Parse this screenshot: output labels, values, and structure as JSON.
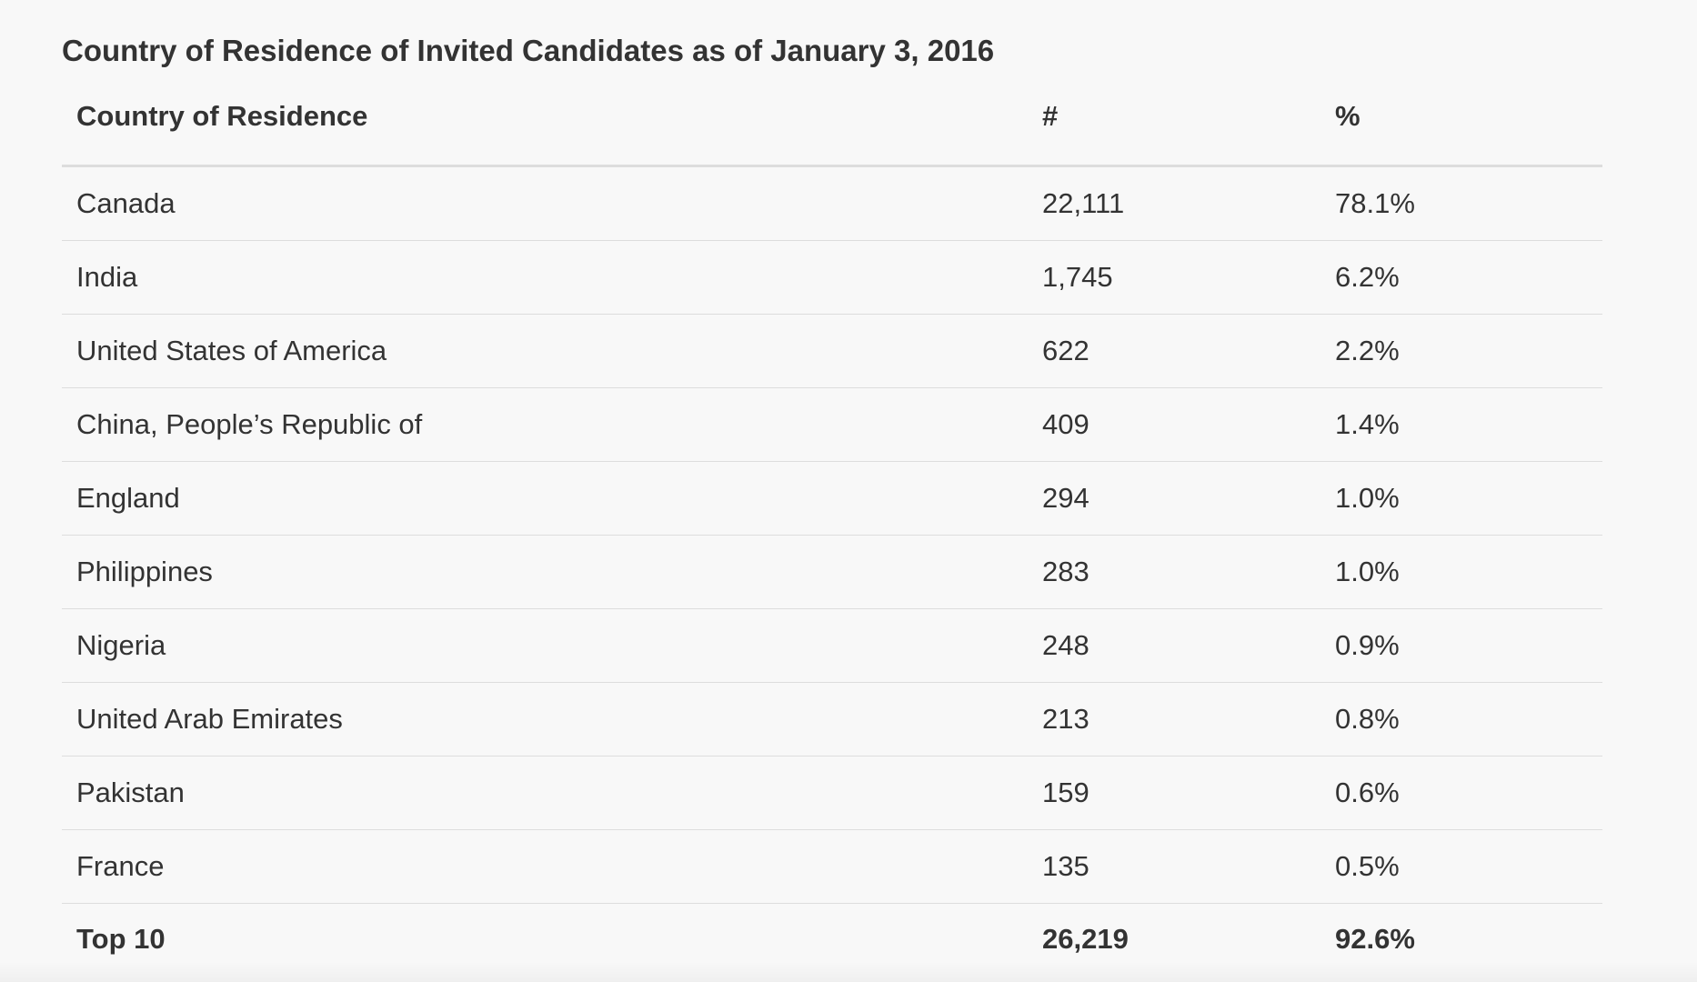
{
  "table": {
    "title": "Country of Residence of Invited Candidates as of January 3, 2016",
    "headers": [
      "Country of Residence",
      "#",
      "%"
    ],
    "rows": [
      [
        "Canada",
        "22,111",
        "78.1%"
      ],
      [
        "India",
        "1,745",
        "6.2%"
      ],
      [
        "United States of America",
        "622",
        "2.2%"
      ],
      [
        "China, People’s Republic of",
        "409",
        "1.4%"
      ],
      [
        "England",
        "294",
        "1.0%"
      ],
      [
        "Philippines",
        "283",
        "1.0%"
      ],
      [
        "Nigeria",
        "248",
        "0.9%"
      ],
      [
        "United Arab Emirates",
        "213",
        "0.8%"
      ],
      [
        "Pakistan",
        "159",
        "0.6%"
      ],
      [
        "France",
        "135",
        "0.5%"
      ]
    ],
    "total": [
      "Top 10",
      "26,219",
      "92.6%"
    ]
  }
}
